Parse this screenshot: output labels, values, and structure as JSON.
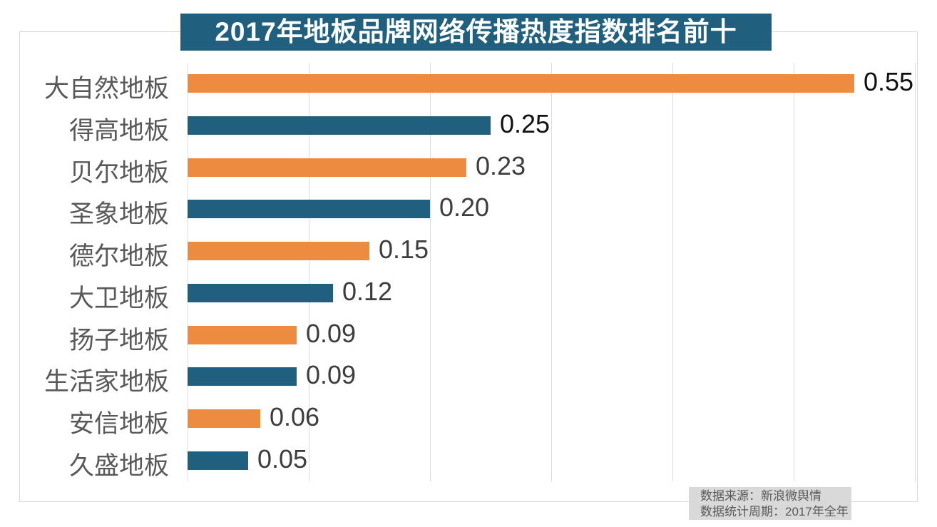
{
  "chart_data": {
    "type": "bar",
    "orientation": "horizontal",
    "title": "2017年地板品牌网络传播热度指数排名前十",
    "categories": [
      "大自然地板",
      "得高地板",
      "贝尔地板",
      "圣象地板",
      "德尔地板",
      "大卫地板",
      "扬子地板",
      "生活家地板",
      "安信地板",
      "久盛地板"
    ],
    "values": [
      0.55,
      0.25,
      0.23,
      0.2,
      0.15,
      0.12,
      0.09,
      0.09,
      0.06,
      0.05
    ],
    "value_labels": [
      "0.55",
      "0.25",
      "0.23",
      "0.20",
      "0.15",
      "0.12",
      "0.09",
      "0.09",
      "0.06",
      "0.05"
    ],
    "bar_colors": [
      "#ED8C40",
      "#20607E",
      "#ED8C40",
      "#20607E",
      "#ED8C40",
      "#20607E",
      "#ED8C40",
      "#20607E",
      "#ED8C40",
      "#20607E"
    ],
    "value_label_colors": [
      "#111111",
      "#111111",
      "#3D3D3D",
      "#3D3D3D",
      "#3D3D3D",
      "#3D3D3D",
      "#3D3D3D",
      "#3D3D3D",
      "#3D3D3D",
      "#3D3D3D"
    ],
    "xlabel": "",
    "ylabel": "",
    "xlim": [
      0,
      0.6
    ],
    "grid_step": 0.1,
    "grid": true,
    "legend": "none"
  },
  "colors": {
    "title_bg": "#20607E",
    "title_text": "#FFFFFF",
    "orange_series": "#ED8C40",
    "blue_series": "#20607E",
    "grid_line": "#DCDCDC",
    "frame_border": "#D9D9D9",
    "category_label": "#595959",
    "source_bg": "#D9D9D9",
    "source_text": "#595959"
  },
  "source_box": {
    "line1": "数据来源：新浪微舆情",
    "line2": "数据统计周期：2017年全年"
  }
}
